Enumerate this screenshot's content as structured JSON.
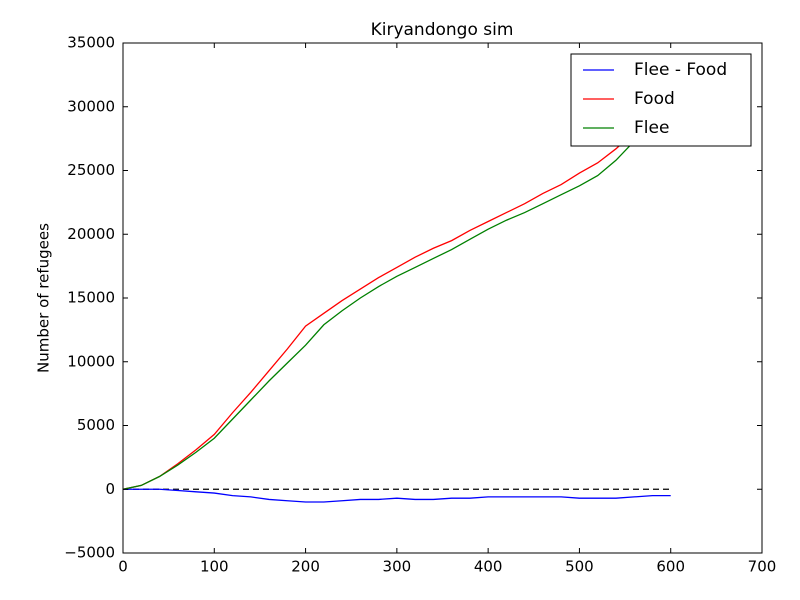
{
  "chart_data": {
    "type": "line",
    "title": "Kiryandongo sim",
    "y_label": "Number of refugees",
    "x": [
      0,
      20,
      40,
      60,
      80,
      100,
      120,
      140,
      160,
      180,
      200,
      220,
      240,
      260,
      280,
      300,
      320,
      340,
      360,
      380,
      400,
      420,
      440,
      460,
      480,
      500,
      520,
      540,
      560,
      580,
      600
    ],
    "series": [
      {
        "name": "Flee - Food",
        "color": "#0000ff",
        "values": [
          0,
          0,
          0,
          -100,
          -200,
          -300,
          -500,
          -600,
          -800,
          -900,
          -1000,
          -1000,
          -900,
          -800,
          -800,
          -700,
          -800,
          -800,
          -700,
          -700,
          -600,
          -600,
          -600,
          -600,
          -600,
          -700,
          -700,
          -700,
          -600,
          -500,
          -500
        ]
      },
      {
        "name": "Food",
        "color": "#ff0000",
        "values": [
          0,
          300,
          1000,
          2000,
          3100,
          4300,
          6000,
          7600,
          9300,
          11000,
          12800,
          13800,
          14800,
          15700,
          16600,
          17400,
          18200,
          18900,
          19500,
          20300,
          21000,
          21700,
          22400,
          23200,
          23900,
          24800,
          25600,
          26700,
          28000,
          29300,
          30500
        ]
      },
      {
        "name": "Flee",
        "color": "#008000",
        "values": [
          0,
          300,
          1000,
          1900,
          2900,
          4000,
          5500,
          7000,
          8500,
          9900,
          11300,
          12900,
          14000,
          15000,
          15900,
          16700,
          17400,
          18100,
          18800,
          19600,
          20400,
          21100,
          21700,
          22400,
          23100,
          23800,
          24600,
          25800,
          27300,
          28800,
          30200
        ]
      }
    ],
    "zero_line": 0,
    "xlim": [
      0,
      700
    ],
    "xticks": [
      0,
      100,
      200,
      300,
      400,
      500,
      600,
      700
    ],
    "ylim": [
      -5000,
      35000
    ],
    "yticks": [
      {
        "value": -5000,
        "label": "−5000"
      },
      0,
      5000,
      10000,
      15000,
      20000,
      25000,
      30000,
      35000
    ],
    "legend": "upper right",
    "grid": false
  }
}
